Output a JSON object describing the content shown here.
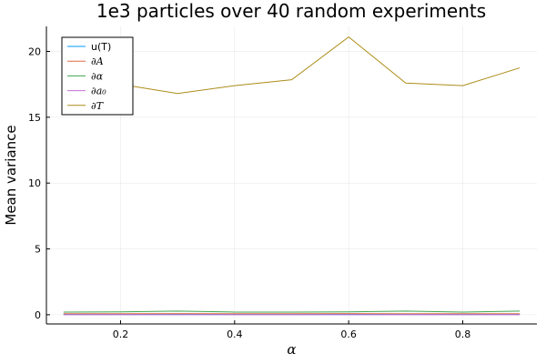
{
  "chart_data": {
    "type": "line",
    "title": "1e3 particles over 40 random experiments",
    "xlabel": "α",
    "ylabel": "Mean variance",
    "xlim": [
      0.07,
      0.93
    ],
    "ylim": [
      -0.7,
      21.9
    ],
    "xticks": [
      0.2,
      0.4,
      0.6,
      0.8
    ],
    "yticks": [
      0,
      5,
      10,
      15,
      20
    ],
    "grid": true,
    "legend_position": "top-left",
    "x": [
      0.1,
      0.2,
      0.3,
      0.4,
      0.5,
      0.6,
      0.7,
      0.8,
      0.9
    ],
    "series": [
      {
        "name": "u(T)",
        "color": "#009af9",
        "values": [
          0.05,
          0.05,
          0.06,
          0.05,
          0.05,
          0.06,
          0.05,
          0.05,
          0.05
        ]
      },
      {
        "name": "∂A",
        "color": "#e26f46",
        "values": [
          0.08,
          0.08,
          0.09,
          0.08,
          0.08,
          0.09,
          0.08,
          0.08,
          0.08
        ]
      },
      {
        "name": "∂α",
        "color": "#3da44d",
        "values": [
          0.2,
          0.22,
          0.28,
          0.2,
          0.2,
          0.22,
          0.28,
          0.2,
          0.28
        ]
      },
      {
        "name": "∂a₀",
        "color": "#c271d2",
        "values": [
          0.0,
          0.0,
          0.0,
          0.0,
          0.0,
          0.0,
          0.0,
          0.0,
          0.0
        ]
      },
      {
        "name": "∂T",
        "color": "#ac8d18",
        "values": [
          17.8,
          17.5,
          16.8,
          17.4,
          17.85,
          21.1,
          17.6,
          17.4,
          18.75
        ]
      }
    ]
  }
}
